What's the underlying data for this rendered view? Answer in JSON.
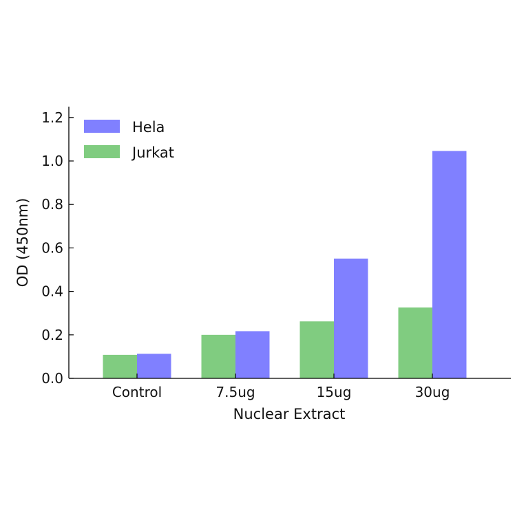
{
  "chart_data": {
    "type": "bar",
    "title": "",
    "xlabel": "Nuclear Extract",
    "ylabel": "OD (450nm)",
    "categories": [
      "Control",
      "7.5ug",
      "15ug",
      "30ug"
    ],
    "series": [
      {
        "name": "Jurkat",
        "color": "#80cc80",
        "values": [
          0.108,
          0.2,
          0.262,
          0.326
        ]
      },
      {
        "name": "Hela",
        "color": "#8080ff",
        "values": [
          0.113,
          0.217,
          0.551,
          1.046
        ]
      }
    ],
    "ylim": [
      0,
      1.25
    ],
    "yticks": [
      "0.0",
      "0.2",
      "0.4",
      "0.6",
      "0.8",
      "1.0",
      "1.2"
    ],
    "grid": false,
    "legend_position": "top-left",
    "legend_order": [
      "Hela",
      "Jurkat"
    ]
  }
}
